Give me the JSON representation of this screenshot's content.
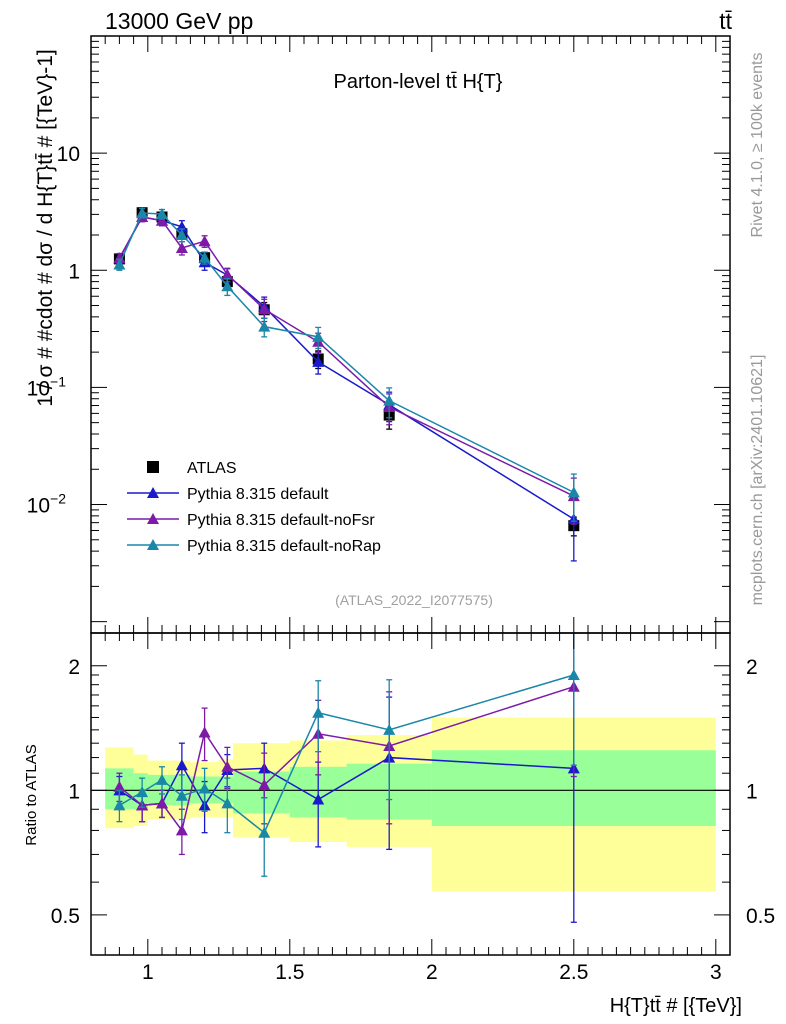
{
  "header": {
    "energy_label": "13000 GeV pp",
    "process_label": "tt̄"
  },
  "side_labels": {
    "rivet": "Rivet 4.1.0, ≥ 100k events",
    "mcplots": "mcplots.cern.ch [arXiv:2401.10621]"
  },
  "chart_data": [
    {
      "type": "line",
      "panel": "main",
      "title": "Parton-level tt̄  H{T}",
      "analysis_label": "(ATLAS_2022_I2077575)",
      "ylabel": "1 / σ # #cdot # dσ / d H{T}tt̄ # [{TeV}-1]",
      "yscale": "log",
      "xlim": [
        0.8,
        3.05
      ],
      "ylim": [
        0.0008,
        100
      ],
      "y_tick_labels": [
        "10",
        "1",
        "10−1",
        "10−2"
      ],
      "legend_position": "middle-left",
      "x": [
        0.9,
        0.98,
        1.05,
        1.12,
        1.2,
        1.28,
        1.41,
        1.6,
        1.85,
        2.5
      ],
      "series": [
        {
          "name": "ATLAS",
          "color": "#000000",
          "marker": "square",
          "values": [
            1.25,
            3.1,
            2.85,
            2.05,
            1.28,
            0.8,
            0.46,
            0.175,
            0.058,
            0.0066
          ],
          "errors": [
            0.1,
            0.25,
            0.25,
            0.2,
            0.14,
            0.1,
            0.07,
            0.03,
            0.014,
            0.0012
          ]
        },
        {
          "name": "Pythia 8.315 default",
          "color": "#1a1acc",
          "marker": "triangle",
          "values": [
            1.26,
            2.85,
            2.65,
            2.35,
            1.17,
            0.91,
            0.49,
            0.165,
            0.071,
            0.0075
          ],
          "errors": [
            0.12,
            0.25,
            0.25,
            0.3,
            0.17,
            0.12,
            0.1,
            0.035,
            0.02,
            0.0042
          ]
        },
        {
          "name": "Pythia 8.315 default-noFsr",
          "color": "#7d1aa8",
          "marker": "triangle",
          "values": [
            1.27,
            2.85,
            2.65,
            1.55,
            1.77,
            0.92,
            0.465,
            0.245,
            0.068,
            0.0118
          ],
          "errors": [
            0.12,
            0.25,
            0.25,
            0.2,
            0.2,
            0.12,
            0.1,
            0.045,
            0.02,
            0.005
          ]
        },
        {
          "name": "Pythia 8.315 default-noRap",
          "color": "#1a86a8",
          "marker": "triangle",
          "values": [
            1.12,
            3.08,
            3.02,
            2.0,
            1.28,
            0.73,
            0.33,
            0.27,
            0.077,
            0.0127
          ],
          "errors": [
            0.12,
            0.28,
            0.28,
            0.25,
            0.15,
            0.12,
            0.06,
            0.055,
            0.022,
            0.0055
          ]
        }
      ]
    },
    {
      "type": "line",
      "panel": "ratio",
      "ylabel": "Ratio to ATLAS",
      "xlabel": "H{T}tt̄ # [{TeV}]",
      "xlim": [
        0.8,
        3.05
      ],
      "ylim": [
        0.4,
        2.4
      ],
      "yscale": "log",
      "x_tick_labels": [
        "1",
        "1.5",
        "2",
        "2.5",
        "3"
      ],
      "y_tick_labels": [
        "0.5",
        "1",
        "2"
      ],
      "x": [
        0.9,
        0.98,
        1.05,
        1.12,
        1.2,
        1.28,
        1.41,
        1.6,
        1.85,
        2.5
      ],
      "bands": {
        "bin_edges": [
          0.85,
          0.95,
          1.0,
          1.1,
          1.15,
          1.25,
          1.3,
          1.5,
          1.7,
          2.0,
          3.0
        ],
        "inner": [
          [
            0.9,
            1.13
          ],
          [
            0.9,
            1.1
          ],
          [
            0.92,
            1.09
          ],
          [
            0.92,
            1.09
          ],
          [
            0.93,
            1.08
          ],
          [
            0.93,
            1.08
          ],
          [
            0.88,
            1.11
          ],
          [
            0.86,
            1.14
          ],
          [
            0.85,
            1.16
          ],
          [
            0.82,
            1.25
          ]
        ],
        "outer": [
          [
            0.81,
            1.27
          ],
          [
            0.82,
            1.22
          ],
          [
            0.85,
            1.18
          ],
          [
            0.85,
            1.18
          ],
          [
            0.86,
            1.17
          ],
          [
            0.86,
            1.19
          ],
          [
            0.77,
            1.3
          ],
          [
            0.75,
            1.32
          ],
          [
            0.73,
            1.36
          ],
          [
            0.57,
            1.5
          ]
        ],
        "inner_color": "#99ff99",
        "outer_color": "#ffff99"
      },
      "series": [
        {
          "name": "Pythia 8.315 default",
          "color": "#1a1acc",
          "values": [
            1.0,
            0.92,
            0.93,
            1.15,
            0.92,
            1.12,
            1.13,
            0.95,
            1.2,
            1.13
          ],
          "errors": [
            0.08,
            0.08,
            0.07,
            0.15,
            0.13,
            0.1,
            0.17,
            0.22,
            0.48,
            0.65
          ]
        },
        {
          "name": "Pythia 8.315 default-noFsr",
          "color": "#7d1aa8",
          "values": [
            1.02,
            0.92,
            0.93,
            0.8,
            1.38,
            1.14,
            1.03,
            1.37,
            1.28,
            1.78
          ],
          "errors": [
            0.08,
            0.08,
            0.07,
            0.1,
            0.2,
            0.13,
            0.2,
            0.28,
            0.45,
            0.7
          ]
        },
        {
          "name": "Pythia 8.315 default-noRap",
          "color": "#1a86a8",
          "values": [
            0.92,
            0.99,
            1.06,
            0.97,
            1.01,
            0.93,
            0.79,
            1.54,
            1.4,
            1.9
          ],
          "errors": [
            0.08,
            0.08,
            0.08,
            0.12,
            0.12,
            0.14,
            0.17,
            0.3,
            0.45,
            0.75
          ]
        }
      ]
    }
  ]
}
